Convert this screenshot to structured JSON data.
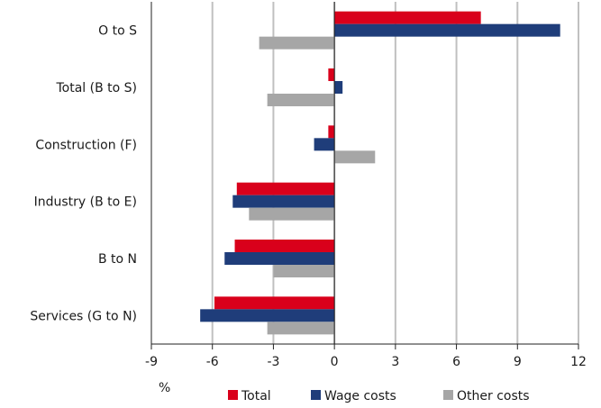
{
  "chart_data": {
    "type": "bar",
    "orientation": "horizontal",
    "categories": [
      "O to S",
      "Total (B to S)",
      "Construction (F)",
      "Industry (B to E)",
      "B to N",
      "Services (G to N)"
    ],
    "series": [
      {
        "name": "Total",
        "color": "#d9001b",
        "values": [
          7.2,
          -0.3,
          -0.3,
          -4.8,
          -4.9,
          -5.9
        ]
      },
      {
        "name": "Wage costs",
        "color": "#1f3d7a",
        "values": [
          11.1,
          0.4,
          -1.0,
          -5.0,
          -5.4,
          -6.6
        ]
      },
      {
        "name": "Other costs",
        "color": "#a6a6a6",
        "values": [
          -3.7,
          -3.3,
          2.0,
          -4.2,
          -3.0,
          -3.3
        ]
      }
    ],
    "xlim": [
      -9,
      12
    ],
    "xticks": [
      "-9",
      "-6",
      "-3",
      "0",
      "3",
      "6",
      "9",
      "12"
    ],
    "xunit": "%",
    "grid": true,
    "legend_position": "bottom"
  }
}
